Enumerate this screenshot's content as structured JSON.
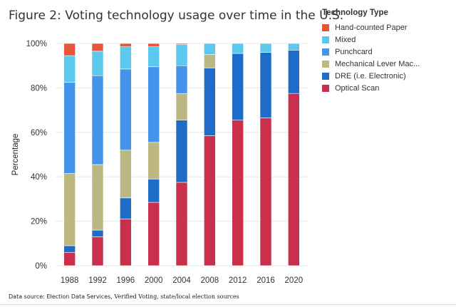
{
  "figure": {
    "title": "Figure 2: Voting technology usage over time in the U.S.",
    "source_label": "Data source: Election Data Services,",
    "source_rest": "Verified Voting, state/local election sources"
  },
  "legend": {
    "title": "Technology Type",
    "placement": "top-right",
    "items": [
      {
        "label": "Hand-counted Paper",
        "color": "#e8553a"
      },
      {
        "label": "Mixed",
        "color": "#5bc8ee"
      },
      {
        "label": "Punchcard",
        "color": "#4594eb"
      },
      {
        "label": "Mechanical Lever Mac...",
        "color": "#bdb882"
      },
      {
        "label": "DRE (i.e. Electronic)",
        "color": "#1f6bc8"
      },
      {
        "label": "Optical Scan",
        "color": "#c9304e"
      }
    ]
  },
  "chart_data": {
    "type": "bar",
    "stacked": true,
    "xlabel": "",
    "ylabel": "Percentage",
    "ylim": [
      0,
      100
    ],
    "yticks": [
      "0%",
      "20%",
      "40%",
      "60%",
      "80%",
      "100%"
    ],
    "grid": "horizontal",
    "categories": [
      "1988",
      "1992",
      "1996",
      "2000",
      "2004",
      "2008",
      "2012",
      "2016",
      "2020"
    ],
    "series": [
      {
        "name": "Optical Scan",
        "color": "#c9304e",
        "values": [
          6,
          13,
          21,
          28.5,
          37.5,
          58.5,
          65.5,
          66.5,
          77.5
        ]
      },
      {
        "name": "DRE (i.e. Electronic)",
        "color": "#1f6bc8",
        "values": [
          3,
          3,
          9.5,
          10.5,
          28,
          30.5,
          30,
          29.5,
          19.5
        ]
      },
      {
        "name": "Mechanical Lever Mac...",
        "color": "#bdb882",
        "values": [
          32.5,
          29.5,
          21.5,
          16.5,
          12,
          6,
          0,
          0,
          0
        ]
      },
      {
        "name": "Punchcard",
        "color": "#4594eb",
        "values": [
          41,
          40,
          36.5,
          34,
          12.5,
          0,
          0,
          0,
          0
        ]
      },
      {
        "name": "Mixed",
        "color": "#5bc8ee",
        "values": [
          12,
          11,
          10,
          9,
          9.5,
          5,
          4.5,
          4,
          3
        ]
      },
      {
        "name": "Hand-counted Paper",
        "color": "#e8553a",
        "values": [
          5.5,
          3.5,
          1.5,
          1.5,
          0.5,
          0,
          0,
          0,
          0
        ]
      }
    ]
  }
}
